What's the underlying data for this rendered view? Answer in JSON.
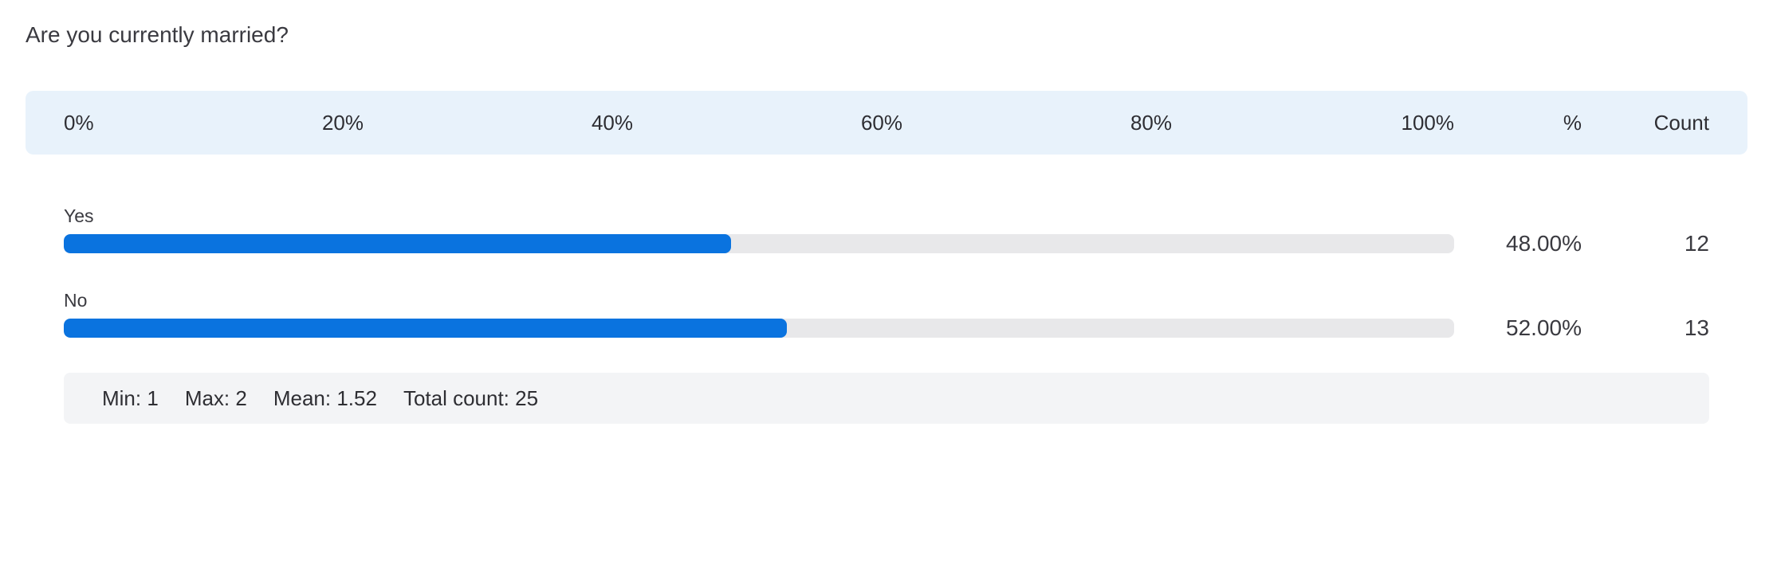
{
  "question": "Are you currently married?",
  "header": {
    "ticks": [
      "0%",
      "20%",
      "40%",
      "60%",
      "80%",
      "100%"
    ],
    "percent_col": "%",
    "count_col": "Count"
  },
  "rows": [
    {
      "label": "Yes",
      "percent": "48.00%",
      "count": "12"
    },
    {
      "label": "No",
      "percent": "52.00%",
      "count": "13"
    }
  ],
  "stats": {
    "min": "Min: 1",
    "max": "Max: 2",
    "mean": "Mean: 1.52",
    "total": "Total count: 25"
  },
  "colors": {
    "bar_fill": "#0a73df",
    "bar_track": "#e8e8ea",
    "header_bg": "#e8f2fb",
    "stats_bg": "#f3f4f6"
  },
  "chart_data": {
    "type": "bar",
    "orientation": "horizontal",
    "title": "Are you currently married?",
    "categories": [
      "Yes",
      "No"
    ],
    "values": [
      48.0,
      52.0
    ],
    "counts": [
      12,
      13
    ],
    "xlim": [
      0,
      100
    ],
    "xlabel": "",
    "ylabel": "",
    "grid": false
  }
}
